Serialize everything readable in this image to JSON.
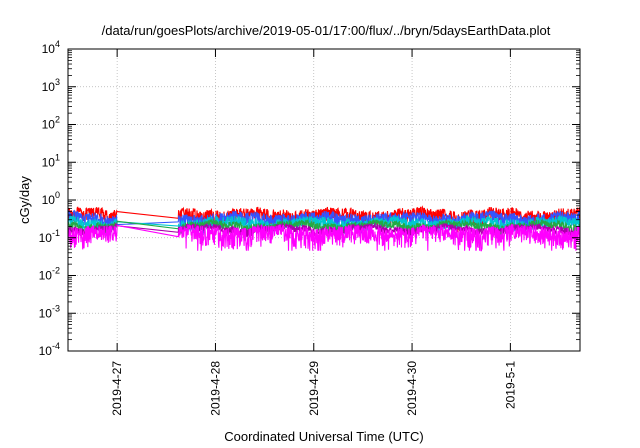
{
  "chart_data": {
    "type": "line",
    "title": "/data/run/goesPlots/archive/2019-05-01/17:00/flux/../bryn/5daysEarthData.plot",
    "xlabel": "Coordinated Universal Time (UTC)",
    "ylabel": "cGy/day",
    "y_scale": "log",
    "ylim": [
      0.0001,
      10000
    ],
    "xlim": [
      "2019-04-26 12:00",
      "2019-05-01 17:00"
    ],
    "x_ticks": [
      "2019-4-27",
      "2019-4-28",
      "2019-4-29",
      "2019-4-30",
      "2019-5-1"
    ],
    "y_ticks": [
      {
        "base": "10",
        "exp": "4"
      },
      {
        "base": "10",
        "exp": "3"
      },
      {
        "base": "10",
        "exp": "2"
      },
      {
        "base": "10",
        "exp": "1"
      },
      {
        "base": "10",
        "exp": "0"
      },
      {
        "base": "10",
        "exp": "-1"
      },
      {
        "base": "10",
        "exp": "-2"
      },
      {
        "base": "10",
        "exp": "-3"
      },
      {
        "base": "10",
        "exp": "-4"
      }
    ],
    "grid": true,
    "data_gap": [
      "2019-04-27 00:00",
      "2019-04-27 15:00"
    ],
    "series": [
      {
        "color": "#ff0000",
        "level": 0.4,
        "spread": 0.45
      },
      {
        "color": "#3355ff",
        "level": 0.32,
        "spread": 0.42
      },
      {
        "color": "#00c8d0",
        "level": 0.25,
        "spread": 0.35
      },
      {
        "color": "#22aa44",
        "level": 0.21,
        "spread": 0.25
      },
      {
        "color": "#aa00aa",
        "level": 0.17,
        "spread": 0.22
      },
      {
        "color": "#ff00ff",
        "level": 0.13,
        "spread": 0.55
      }
    ]
  }
}
